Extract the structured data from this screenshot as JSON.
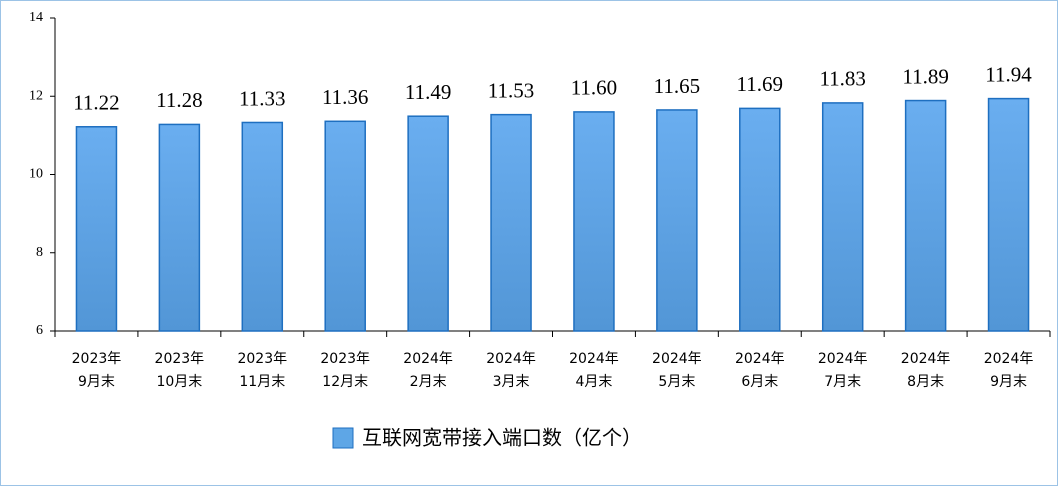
{
  "chart_data": {
    "type": "bar",
    "categories": [
      [
        "2023年",
        "9月末"
      ],
      [
        "2023年",
        "10月末"
      ],
      [
        "2023年",
        "11月末"
      ],
      [
        "2023年",
        "12月末"
      ],
      [
        "2024年",
        "2月末"
      ],
      [
        "2024年",
        "3月末"
      ],
      [
        "2024年",
        "4月末"
      ],
      [
        "2024年",
        "5月末"
      ],
      [
        "2024年",
        "6月末"
      ],
      [
        "2024年",
        "7月末"
      ],
      [
        "2024年",
        "8月末"
      ],
      [
        "2024年",
        "9月末"
      ]
    ],
    "series": [
      {
        "name": "互联网宽带接入端口数（亿个）",
        "color": "#5ea6e6",
        "values": [
          11.22,
          11.28,
          11.33,
          11.36,
          11.49,
          11.53,
          11.6,
          11.65,
          11.69,
          11.83,
          11.89,
          11.94
        ],
        "value_labels": [
          "11.22",
          "11.28",
          "11.33",
          "11.36",
          "11.49",
          "11.53",
          "11.60",
          "11.65",
          "11.69",
          "11.83",
          "11.89",
          "11.94"
        ]
      }
    ],
    "ylim": [
      6,
      14
    ],
    "yticks": [
      6,
      8,
      10,
      12,
      14
    ]
  }
}
